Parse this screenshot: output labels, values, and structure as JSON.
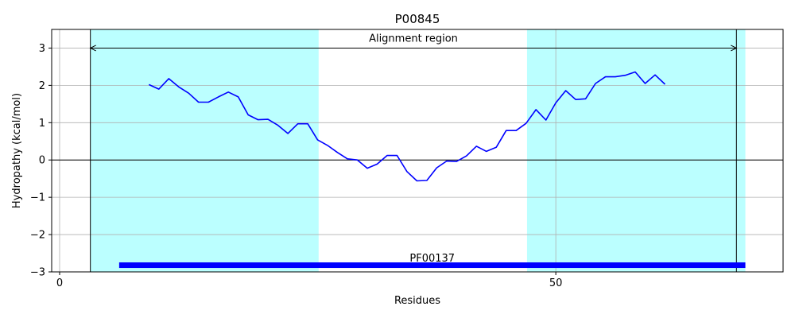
{
  "chart_data": {
    "type": "line",
    "title": "P00845",
    "xlabel": "Residues",
    "ylabel": "Hydropathy (kcal/mol)",
    "xlim": [
      -0.8,
      72.9
    ],
    "ylim": [
      -3,
      3.5
    ],
    "xticks": [
      0,
      50
    ],
    "yticks": [
      -3,
      -2,
      -1,
      0,
      1,
      2,
      3
    ],
    "grid": true,
    "colors": {
      "line": "#0000ff",
      "region": "#bbffff",
      "bar": "#0000ff",
      "axis": "#000000",
      "grid": "#b0b0b0"
    },
    "series": [
      {
        "x": [
          9,
          10,
          11,
          12,
          13,
          14,
          15,
          16,
          17,
          18,
          19,
          20,
          21,
          22,
          23,
          24,
          25,
          26,
          27,
          28,
          29,
          30,
          31,
          32,
          33,
          34,
          35,
          36,
          37,
          38,
          39,
          40,
          41,
          42,
          43,
          44,
          45,
          46,
          47,
          48,
          49,
          50,
          51,
          52,
          53,
          54,
          55,
          56,
          57,
          58,
          59,
          60,
          61
        ],
        "values": [
          2.02,
          1.9,
          2.18,
          1.96,
          1.79,
          1.55,
          1.55,
          1.69,
          1.82,
          1.69,
          1.21,
          1.08,
          1.09,
          0.93,
          0.71,
          0.97,
          0.97,
          0.54,
          0.39,
          0.2,
          0.03,
          0.0,
          -0.22,
          -0.11,
          0.12,
          0.12,
          -0.31,
          -0.56,
          -0.55,
          -0.21,
          -0.03,
          -0.04,
          0.11,
          0.37,
          0.23,
          0.34,
          0.79,
          0.79,
          0.98,
          1.35,
          1.07,
          1.53,
          1.86,
          1.62,
          1.64,
          2.05,
          2.23,
          2.23,
          2.27,
          2.36,
          2.05,
          2.28,
          2.03
        ]
      }
    ],
    "regions": [
      {
        "x_start": 3.1,
        "x_end": 26.1
      },
      {
        "x_start": 47.1,
        "x_end": 69.1
      }
    ],
    "vlines": [
      3.1,
      68.2
    ],
    "hline": 0,
    "annotations": [
      {
        "text": "Alignment region",
        "x_start": 3.1,
        "x_end": 68.2,
        "y": 3,
        "label_y": 3.17
      },
      {
        "text": "PF00137",
        "x_start": 6,
        "x_end": 69.1,
        "y": -2.82,
        "label_y": -2.72
      }
    ]
  }
}
